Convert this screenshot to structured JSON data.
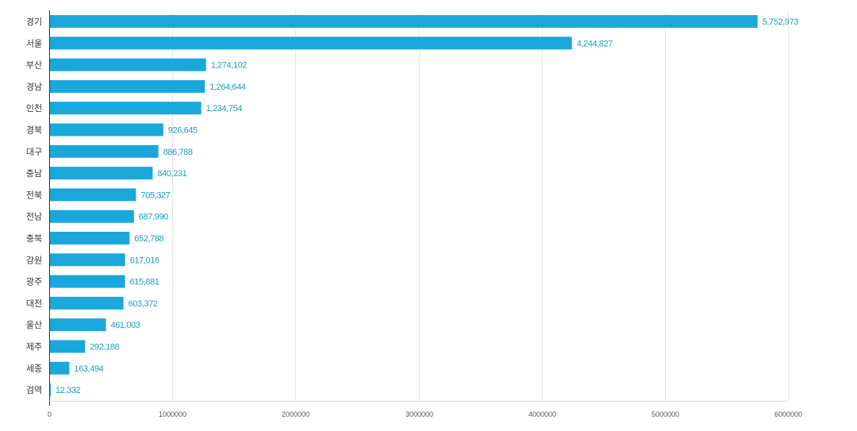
{
  "chart_data": {
    "type": "bar",
    "orientation": "horizontal",
    "title": "",
    "xlabel": "",
    "ylabel": "",
    "categories": [
      "경기",
      "서울",
      "부산",
      "경남",
      "인천",
      "경북",
      "대구",
      "충남",
      "전북",
      "전남",
      "충북",
      "강원",
      "광주",
      "대전",
      "울산",
      "제주",
      "세종",
      "검역"
    ],
    "values": [
      5752973,
      4244827,
      1274102,
      1264644,
      1234754,
      926645,
      886788,
      840231,
      705327,
      687990,
      652788,
      617016,
      615881,
      603372,
      461003,
      292188,
      163494,
      12332
    ],
    "value_labels": [
      "5,752,973",
      "4,244,827",
      "1,274,102",
      "1,264,644",
      "1,234,754",
      "926,645",
      "886,788",
      "840,231",
      "705,327",
      "687,990",
      "652,788",
      "617,016",
      "615,881",
      "603,372",
      "461,003",
      "292,188",
      "163,494",
      "12,332"
    ],
    "xlim": [
      0,
      6000000
    ],
    "x_ticks": [
      0,
      1000000,
      2000000,
      3000000,
      4000000,
      5000000,
      6000000
    ],
    "x_tick_labels": [
      "0",
      "1000000",
      "2000000",
      "3000000",
      "4000000",
      "5000000",
      "6000000"
    ],
    "grid": "vertical",
    "legend": "none",
    "bar_color": "#1aa7db",
    "value_label_color": "#1a9fc4"
  }
}
